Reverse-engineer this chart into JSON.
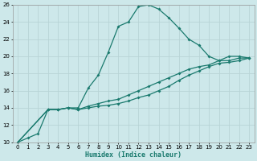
{
  "xlabel": "Humidex (Indice chaleur)",
  "xlim": [
    -0.5,
    23.5
  ],
  "ylim": [
    10,
    26
  ],
  "xticks": [
    0,
    1,
    2,
    3,
    4,
    5,
    6,
    7,
    8,
    9,
    10,
    11,
    12,
    13,
    14,
    15,
    16,
    17,
    18,
    19,
    20,
    21,
    22,
    23
  ],
  "yticks": [
    10,
    12,
    14,
    16,
    18,
    20,
    22,
    24,
    26
  ],
  "bg_color": "#cde8ea",
  "grid_color": "#b8d4d6",
  "line_color": "#1a7a6e",
  "line1_x": [
    0,
    1,
    2,
    3,
    4,
    5,
    6,
    7,
    8,
    9,
    10,
    11,
    12,
    13,
    14,
    15,
    16,
    17,
    18,
    19,
    20,
    21,
    22,
    23
  ],
  "line1_y": [
    10.0,
    10.5,
    11.0,
    13.8,
    13.8,
    14.0,
    14.0,
    16.3,
    17.8,
    20.5,
    23.5,
    24.0,
    25.8,
    26.0,
    25.5,
    24.5,
    23.3,
    22.0,
    21.3,
    20.0,
    19.5,
    20.0,
    20.0,
    19.8
  ],
  "line2_x": [
    0,
    3,
    4,
    5,
    6,
    7,
    8,
    9,
    10,
    11,
    12,
    13,
    14,
    15,
    16,
    17,
    18,
    19,
    20,
    21,
    22,
    23
  ],
  "line2_y": [
    10.0,
    13.8,
    13.8,
    14.0,
    13.8,
    14.2,
    14.5,
    14.8,
    15.0,
    15.5,
    16.0,
    16.5,
    17.0,
    17.5,
    18.0,
    18.5,
    18.8,
    19.0,
    19.5,
    19.5,
    19.8,
    19.8
  ],
  "line3_x": [
    0,
    3,
    4,
    5,
    6,
    7,
    8,
    9,
    10,
    11,
    12,
    13,
    14,
    15,
    16,
    17,
    18,
    19,
    20,
    21,
    22,
    23
  ],
  "line3_y": [
    10.0,
    13.8,
    13.8,
    14.0,
    13.8,
    14.0,
    14.2,
    14.3,
    14.5,
    14.8,
    15.2,
    15.5,
    16.0,
    16.5,
    17.2,
    17.8,
    18.3,
    18.8,
    19.2,
    19.3,
    19.5,
    19.8
  ]
}
